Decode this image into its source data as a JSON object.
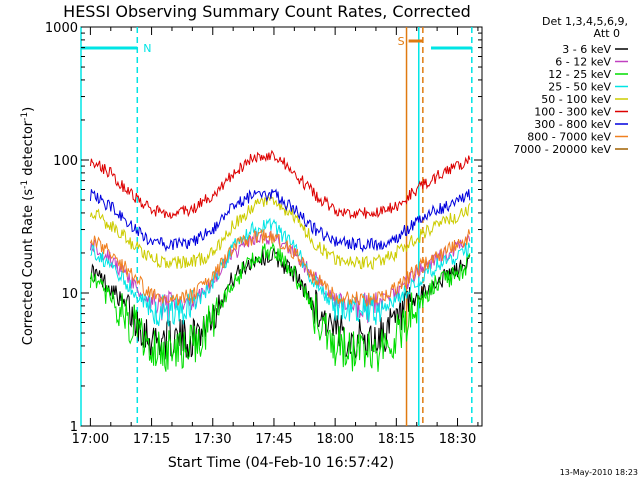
{
  "chart_data": {
    "type": "line",
    "title": "HESSI Observing Summary Count Rates, Corrected",
    "xlabel": "Start Time (04-Feb-10 16:57:42)",
    "ylabel_main": "Corrected Count Rate (s",
    "ylabel_exp1": "-1",
    "ylabel_mid": " detector",
    "ylabel_exp2": "-1",
    "ylabel_end": ")",
    "y_scale": "log",
    "ylim": [
      1,
      1000
    ],
    "xlim": [
      "16:57:42",
      "18:37:00"
    ],
    "x_tick_labels": [
      "17:00",
      "17:15",
      "17:30",
      "17:45",
      "18:00",
      "18:15",
      "18:30"
    ],
    "x_tick_minutes": [
      0,
      15,
      30,
      45,
      60,
      75,
      90
    ],
    "y_tick_labels": [
      "1",
      "10",
      "100",
      "1000"
    ],
    "y_tick_values": [
      1,
      10,
      100,
      1000
    ],
    "legend_position": "right",
    "legend_header": [
      "Det 1,3,4,5,6,9,",
      "Att 0"
    ],
    "footer_date": "13-May-2010 18:23",
    "flags": [
      {
        "label": "N",
        "color": "#00e5e5",
        "start_min": -2.3,
        "end_min": 11.5
      },
      {
        "label": "S",
        "color": "#e07a10",
        "start_min": 78.0,
        "end_min": 81.5
      },
      {
        "label": "",
        "color": "#00e5e5",
        "start_min": 83.5,
        "end_min": 93.5
      }
    ],
    "vlines": [
      {
        "min": -2.3,
        "color": "#00e5e5",
        "style": "solid"
      },
      {
        "min": 11.5,
        "color": "#00e5e5",
        "style": "dashed"
      },
      {
        "min": 77.5,
        "color": "#e07a10",
        "style": "solid"
      },
      {
        "min": 80.5,
        "color": "#00e5e5",
        "style": "solid"
      },
      {
        "min": 81.5,
        "color": "#e07a10",
        "style": "dashed"
      },
      {
        "min": 93.5,
        "color": "#00e5e5",
        "style": "dashed"
      }
    ],
    "x_minutes": [
      0,
      5,
      10,
      15,
      20,
      25,
      30,
      35,
      40,
      45,
      50,
      55,
      60,
      65,
      70,
      75,
      80,
      85,
      90,
      93
    ],
    "series": [
      {
        "name": "3 - 6 keV",
        "color": "#000000",
        "values": [
          15,
          11,
          7,
          4.5,
          4.5,
          4.5,
          7,
          13,
          18,
          19,
          14,
          8,
          5,
          4.5,
          4.5,
          6,
          9,
          12,
          15,
          17
        ]
      },
      {
        "name": "6 - 12 keV",
        "color": "#c040c0",
        "values": [
          24,
          18,
          12,
          8,
          8,
          8.5,
          12,
          20,
          25,
          26,
          20,
          13,
          9,
          8,
          8,
          10,
          14,
          18,
          22,
          25
        ]
      },
      {
        "name": "12 - 25 keV",
        "color": "#00dd00",
        "values": [
          13,
          9,
          6,
          4,
          3.6,
          4,
          6,
          12,
          18,
          22,
          14,
          7,
          4,
          3.6,
          3.6,
          5,
          8,
          12,
          14,
          17
        ]
      },
      {
        "name": "25 - 50 keV",
        "color": "#00e5e5",
        "values": [
          22,
          16,
          11,
          7.5,
          7.5,
          8,
          12,
          22,
          30,
          32,
          22,
          12,
          8,
          7.5,
          7.5,
          9,
          12,
          16,
          19,
          22
        ]
      },
      {
        "name": "50 - 100 keV",
        "color": "#cccc00",
        "values": [
          42,
          32,
          24,
          18,
          17,
          17,
          20,
          32,
          45,
          50,
          38,
          24,
          18,
          17,
          17,
          20,
          26,
          32,
          38,
          42
        ]
      },
      {
        "name": "100 - 300 keV",
        "color": "#dd0000",
        "values": [
          100,
          80,
          55,
          42,
          40,
          42,
          55,
          80,
          105,
          110,
          80,
          55,
          42,
          40,
          40,
          45,
          60,
          75,
          90,
          100
        ]
      },
      {
        "name": "300 - 800 keV",
        "color": "#0000dd",
        "values": [
          55,
          45,
          32,
          24,
          23,
          24,
          30,
          45,
          55,
          55,
          42,
          30,
          24,
          23,
          23,
          26,
          34,
          42,
          50,
          55
        ]
      },
      {
        "name": "800 - 7000 keV",
        "color": "#f08020",
        "values": [
          27,
          20,
          14,
          9.5,
          9,
          9.5,
          13,
          22,
          26,
          27,
          20,
          13,
          9.5,
          9,
          9,
          11,
          15,
          19,
          23,
          27
        ]
      },
      {
        "name": "7000 - 20000 keV",
        "color": "#a06000",
        "values": []
      }
    ]
  }
}
